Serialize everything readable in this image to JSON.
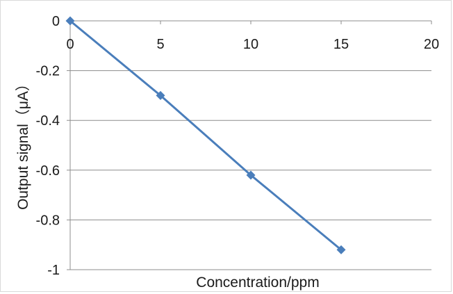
{
  "chart_data": {
    "type": "line",
    "xlabel": "Concentration/ppm",
    "ylabel": "Output signal（μA）",
    "xlim": [
      0,
      20
    ],
    "ylim": [
      -1,
      0
    ],
    "x_ticks": [
      0,
      5,
      10,
      15,
      20
    ],
    "y_ticks": [
      0,
      -0.2,
      -0.4,
      -0.6,
      -0.8,
      -1
    ],
    "x_tick_labels": [
      "0",
      "5",
      "10",
      "15",
      "20"
    ],
    "y_tick_labels": [
      "0",
      "-0.2",
      "-0.4",
      "-0.6",
      "-0.8",
      "-1"
    ],
    "grid": "horizontal",
    "x_axis_position": "top",
    "legend": "none",
    "series": [
      {
        "x": [
          0,
          5,
          10,
          15
        ],
        "y": [
          0,
          -0.3,
          -0.62,
          -0.92
        ],
        "color": "#4a7ebb",
        "marker": "diamond"
      }
    ]
  }
}
